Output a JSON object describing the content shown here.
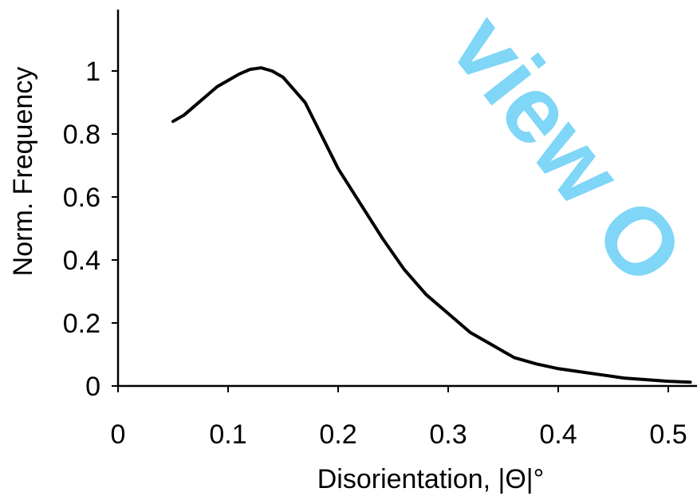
{
  "chart_data": {
    "type": "line",
    "xlabel": "Disorientation, |Θ|°",
    "ylabel": "Norm. Frequency",
    "xlim": [
      0,
      0.52
    ],
    "ylim": [
      0,
      1.18
    ],
    "x_ticks": [
      0,
      0.1,
      0.2,
      0.3,
      0.4,
      0.5
    ],
    "x_tick_labels": [
      "0",
      "0.1",
      "0.2",
      "0.3",
      "0.4",
      "0.5"
    ],
    "y_ticks": [
      0,
      0.2,
      0.4,
      0.6,
      0.8,
      1
    ],
    "y_tick_labels": [
      "0",
      "0.2",
      "0.4",
      "0.6",
      "0.8",
      "1"
    ],
    "grid": false,
    "series": [
      {
        "color": "#000000",
        "x": [
          0.05,
          0.06,
          0.07,
          0.08,
          0.09,
          0.1,
          0.11,
          0.12,
          0.13,
          0.14,
          0.15,
          0.16,
          0.17,
          0.18,
          0.19,
          0.2,
          0.22,
          0.24,
          0.26,
          0.28,
          0.3,
          0.32,
          0.34,
          0.36,
          0.38,
          0.4,
          0.42,
          0.44,
          0.46,
          0.48,
          0.5,
          0.52
        ],
        "y": [
          0.84,
          0.86,
          0.89,
          0.92,
          0.95,
          0.97,
          0.99,
          1.005,
          1.01,
          1.0,
          0.98,
          0.94,
          0.9,
          0.83,
          0.76,
          0.69,
          0.58,
          0.47,
          0.37,
          0.29,
          0.23,
          0.17,
          0.13,
          0.09,
          0.07,
          0.055,
          0.045,
          0.035,
          0.025,
          0.02,
          0.015,
          0.012
        ]
      }
    ]
  },
  "watermark": {
    "text": "view O",
    "color": "#7fd6f7"
  }
}
